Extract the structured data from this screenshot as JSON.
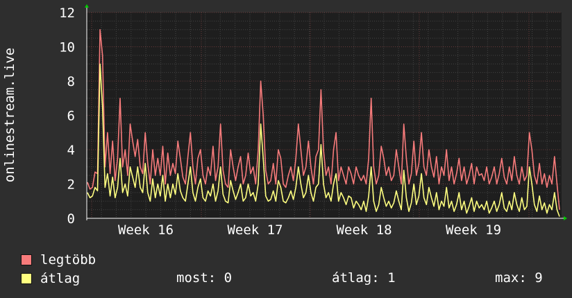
{
  "chart_data": {
    "type": "line",
    "ylabel": "onlinestream.live",
    "ylim": [
      0,
      12
    ],
    "yticks": [
      0,
      2,
      4,
      6,
      8,
      10,
      12
    ],
    "xticks": [
      "Week 16",
      "Week 17",
      "Week 18",
      "Week 19"
    ],
    "grid": true,
    "series": [
      {
        "name": "legtöbb",
        "color": "#f77b7b",
        "values": [
          2.1,
          1.7,
          1.8,
          2.7,
          2.6,
          11.0,
          9.5,
          3.0,
          5.0,
          2.6,
          4.5,
          2.2,
          3.5,
          7.0,
          3.0,
          4.0,
          2.5,
          5.5,
          4.5,
          3.6,
          4.6,
          3.0,
          2.6,
          5.0,
          3.2,
          2.0,
          4.0,
          2.5,
          3.5,
          2.5,
          4.2,
          2.0,
          3.8,
          2.5,
          3.2,
          2.6,
          4.5,
          3.5,
          2.4,
          2.0,
          3.6,
          5.0,
          3.0,
          2.0,
          3.5,
          4.0,
          2.5,
          2.0,
          3.0,
          2.5,
          4.2,
          2.2,
          3.0,
          5.5,
          2.8,
          2.0,
          1.8,
          4.0,
          3.0,
          2.2,
          3.0,
          3.6,
          2.0,
          2.5,
          3.8,
          2.6,
          3.0,
          2.0,
          4.0,
          8.0,
          6.0,
          2.8,
          2.0,
          2.2,
          3.2,
          2.0,
          4.0,
          3.5,
          2.0,
          1.8,
          2.5,
          3.0,
          2.2,
          3.5,
          5.5,
          4.0,
          2.5,
          3.0,
          4.5,
          3.0,
          2.0,
          3.6,
          4.0,
          7.5,
          4.0,
          2.5,
          3.0,
          2.0,
          4.0,
          5.0,
          2.2,
          3.0,
          2.5,
          2.0,
          3.0,
          2.6,
          2.0,
          3.0,
          2.5,
          2.2,
          2.5,
          2.0,
          3.5,
          7.0,
          3.0,
          2.0,
          2.5,
          4.2,
          3.5,
          2.5,
          3.0,
          2.2,
          2.5,
          4.0,
          3.0,
          2.0,
          5.5,
          3.5,
          2.0,
          2.6,
          4.5,
          2.5,
          3.2,
          5.0,
          3.0,
          2.5,
          4.0,
          3.0,
          2.4,
          3.6,
          2.0,
          3.0,
          2.5,
          4.0,
          2.2,
          3.0,
          2.0,
          2.6,
          3.5,
          2.2,
          3.0,
          2.0,
          2.5,
          3.2,
          2.0,
          3.0,
          2.5,
          2.6,
          2.2,
          3.0,
          2.0,
          2.4,
          3.0,
          2.0,
          2.6,
          3.5,
          2.4,
          2.0,
          3.0,
          2.2,
          3.6,
          2.5,
          2.0,
          3.0,
          2.2,
          2.5,
          5.0,
          4.0,
          2.5,
          2.0,
          3.2,
          2.0,
          2.6,
          1.8,
          2.5,
          2.0,
          3.6,
          2.0,
          0.5
        ]
      },
      {
        "name": "átlag",
        "color": "#ffff80",
        "values": [
          1.5,
          1.2,
          1.3,
          1.8,
          1.6,
          9.0,
          6.5,
          1.8,
          2.6,
          1.3,
          2.4,
          1.2,
          1.8,
          3.5,
          1.5,
          2.0,
          1.3,
          3.0,
          2.4,
          1.8,
          3.0,
          1.8,
          1.5,
          3.2,
          1.5,
          1.0,
          2.3,
          1.2,
          2.0,
          1.3,
          2.5,
          1.0,
          2.0,
          1.2,
          2.0,
          1.4,
          2.6,
          1.6,
          1.2,
          1.0,
          2.0,
          3.0,
          1.5,
          1.0,
          1.8,
          2.3,
          1.2,
          1.0,
          1.6,
          1.3,
          2.0,
          1.0,
          1.6,
          3.0,
          1.4,
          1.0,
          0.9,
          2.2,
          1.6,
          1.1,
          1.5,
          2.0,
          1.0,
          1.2,
          2.0,
          1.3,
          1.5,
          1.0,
          2.0,
          5.5,
          3.5,
          1.3,
          1.0,
          1.1,
          1.6,
          1.0,
          2.2,
          1.8,
          1.0,
          0.9,
          1.2,
          1.6,
          1.1,
          1.8,
          3.0,
          2.0,
          1.2,
          1.5,
          2.5,
          1.5,
          1.0,
          1.8,
          2.0,
          4.3,
          2.0,
          1.2,
          1.5,
          1.0,
          2.0,
          2.6,
          1.0,
          1.5,
          1.2,
          0.8,
          1.3,
          1.2,
          0.6,
          1.0,
          0.8,
          0.5,
          1.0,
          0.4,
          1.3,
          3.0,
          1.0,
          0.4,
          0.8,
          1.8,
          1.2,
          0.7,
          1.0,
          0.6,
          0.9,
          1.6,
          1.0,
          0.5,
          2.8,
          1.2,
          0.4,
          0.9,
          2.0,
          0.8,
          1.3,
          2.6,
          1.2,
          0.8,
          1.8,
          1.2,
          0.7,
          1.5,
          0.5,
          1.0,
          0.7,
          1.8,
          0.6,
          1.0,
          0.4,
          0.8,
          1.5,
          0.5,
          1.0,
          0.3,
          0.7,
          1.2,
          0.4,
          1.0,
          0.6,
          0.8,
          0.5,
          1.0,
          0.3,
          0.6,
          1.0,
          0.4,
          0.8,
          1.5,
          0.6,
          0.4,
          1.0,
          0.5,
          1.5,
          0.8,
          0.4,
          1.2,
          0.5,
          0.7,
          3.0,
          2.0,
          0.8,
          0.4,
          1.3,
          0.5,
          0.9,
          0.3,
          0.8,
          0.5,
          1.5,
          0.5,
          0.1
        ]
      }
    ]
  },
  "legend": [
    {
      "label": "legtöbb",
      "color": "#f77b7b"
    },
    {
      "label": "átlag",
      "color": "#ffff80"
    }
  ],
  "stats": {
    "most": "most: 0",
    "atlag": "átlag: 1",
    "max": "max: 9"
  }
}
